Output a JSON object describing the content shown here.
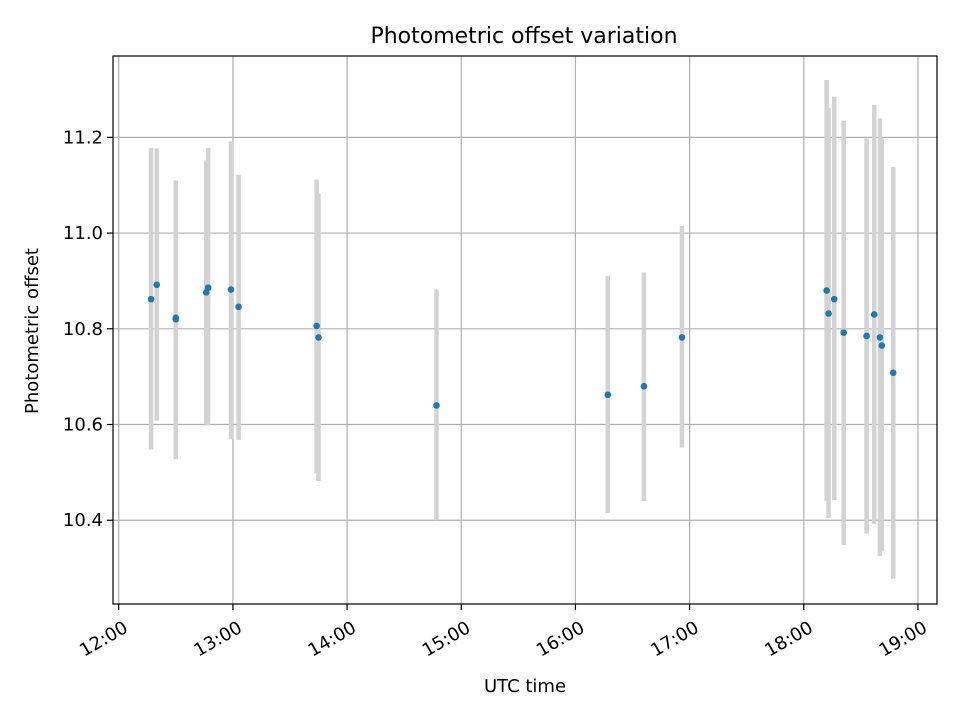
{
  "chart_data": {
    "type": "scatter",
    "title": "Photometric offset variation",
    "xlabel": "UTC time",
    "ylabel": "Photometric offset",
    "xlim": [
      "11:57",
      "19:10"
    ],
    "ylim": [
      10.225,
      11.37
    ],
    "grid": true,
    "xticks": [
      "12:00",
      "13:00",
      "14:00",
      "15:00",
      "16:00",
      "17:00",
      "18:00",
      "19:00"
    ],
    "yticks": [
      "10.4",
      "10.6",
      "10.8",
      "11.0",
      "11.2"
    ],
    "series": [
      {
        "color": "#1f77b4",
        "errorbar_color": "#d3d3d3",
        "points": [
          {
            "x": "12:17",
            "y": 10.862,
            "ylow": 10.548,
            "yhigh": 11.178
          },
          {
            "x": "12:20",
            "y": 10.892,
            "ylow": 10.608,
            "yhigh": 11.177
          },
          {
            "x": "12:30",
            "y": 10.82,
            "ylow": 10.528,
            "yhigh": 11.108
          },
          {
            "x": "12:30",
            "y": 10.823,
            "ylow": 10.538,
            "yhigh": 11.11
          },
          {
            "x": "12:46",
            "y": 10.876,
            "ylow": 10.6,
            "yhigh": 11.152
          },
          {
            "x": "12:47",
            "y": 10.886,
            "ylow": 10.598,
            "yhigh": 11.178
          },
          {
            "x": "12:59",
            "y": 10.882,
            "ylow": 10.57,
            "yhigh": 11.192
          },
          {
            "x": "13:03",
            "y": 10.846,
            "ylow": 10.568,
            "yhigh": 11.122
          },
          {
            "x": "13:44",
            "y": 10.806,
            "ylow": 10.498,
            "yhigh": 11.112
          },
          {
            "x": "13:45",
            "y": 10.782,
            "ylow": 10.482,
            "yhigh": 11.082
          },
          {
            "x": "14:47",
            "y": 10.64,
            "ylow": 10.4,
            "yhigh": 10.882
          },
          {
            "x": "16:17",
            "y": 10.662,
            "ylow": 10.415,
            "yhigh": 10.91
          },
          {
            "x": "16:36",
            "y": 10.68,
            "ylow": 10.44,
            "yhigh": 10.918
          },
          {
            "x": "16:56",
            "y": 10.782,
            "ylow": 10.552,
            "yhigh": 11.015
          },
          {
            "x": "18:12",
            "y": 10.88,
            "ylow": 10.44,
            "yhigh": 11.32
          },
          {
            "x": "18:13",
            "y": 10.832,
            "ylow": 10.405,
            "yhigh": 11.262
          },
          {
            "x": "18:16",
            "y": 10.862,
            "ylow": 10.442,
            "yhigh": 11.285
          },
          {
            "x": "18:21",
            "y": 10.792,
            "ylow": 10.348,
            "yhigh": 11.235
          },
          {
            "x": "18:33",
            "y": 10.785,
            "ylow": 10.372,
            "yhigh": 11.198
          },
          {
            "x": "18:37",
            "y": 10.83,
            "ylow": 10.392,
            "yhigh": 11.268
          },
          {
            "x": "18:40",
            "y": 10.782,
            "ylow": 10.325,
            "yhigh": 11.24
          },
          {
            "x": "18:41",
            "y": 10.765,
            "ylow": 10.335,
            "yhigh": 11.198
          },
          {
            "x": "18:47",
            "y": 10.708,
            "ylow": 10.278,
            "yhigh": 11.138
          }
        ]
      }
    ]
  }
}
